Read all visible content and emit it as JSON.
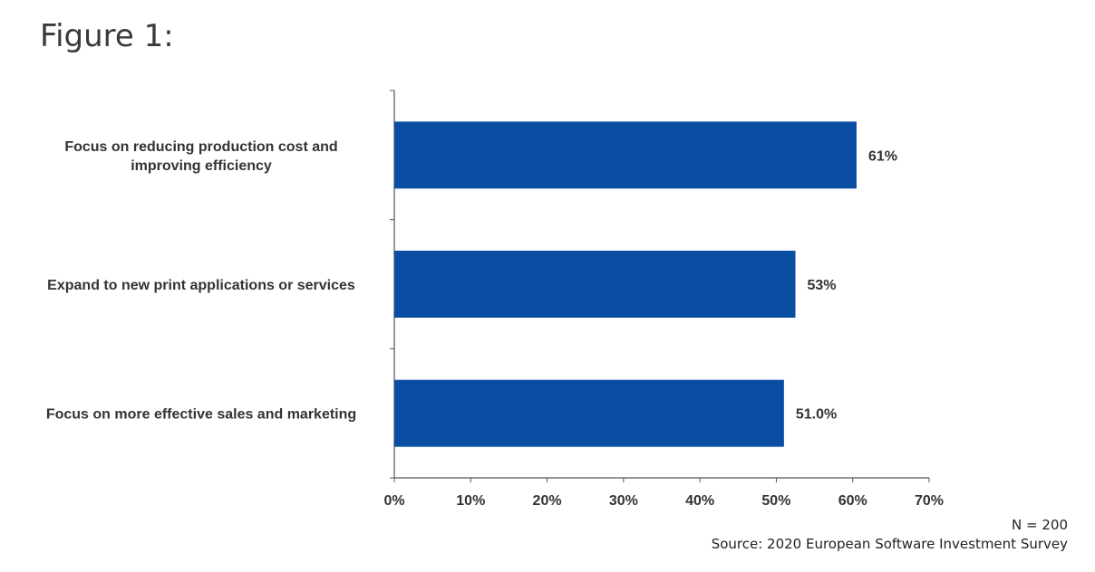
{
  "title": "Figure 1:",
  "footnotes": {
    "n": "N = 200",
    "source": "Source:  2020 European Software Investment Survey"
  },
  "colors": {
    "bar": "#0a4ea3",
    "axis": "#555555"
  },
  "chart_data": {
    "type": "bar",
    "orientation": "horizontal",
    "categories": [
      [
        "Focus on reducing production cost and",
        "improving efficiency"
      ],
      [
        "Expand to new print applications or  services"
      ],
      [
        "Focus on more effective sales and  marketing"
      ]
    ],
    "values": [
      60.5,
      52.5,
      51.0
    ],
    "value_labels": [
      "61%",
      "53%",
      "51.0%"
    ],
    "xlim": [
      0,
      70
    ],
    "xticks": [
      0,
      10,
      20,
      30,
      40,
      50,
      60,
      70
    ],
    "xtick_labels": [
      "0%",
      "10%",
      "20%",
      "30%",
      "40%",
      "50%",
      "60%",
      "70%"
    ],
    "grid": false,
    "legend": "none"
  }
}
